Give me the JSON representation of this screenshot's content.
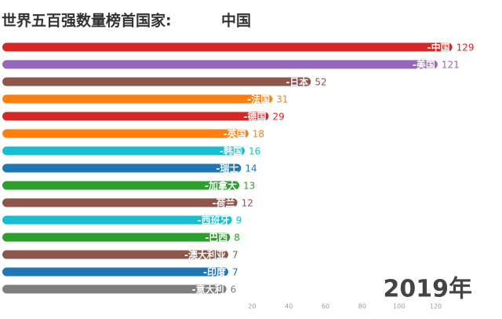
{
  "chart_data": {
    "type": "bar",
    "orientation": "horizontal",
    "title": "世界五百强数量榜首国家:",
    "leader": "中国",
    "annotation": "2019年",
    "categories": [
      "-中国",
      "-美国",
      "-日本",
      "-法国",
      "-德国",
      "-英国",
      "-韩国",
      "-瑞士",
      "-加拿大",
      "-荷兰",
      "-西班牙",
      "-巴西",
      "-澳大利亚",
      "-印度",
      "-意大利"
    ],
    "values": [
      129,
      121,
      52,
      31,
      29,
      18,
      16,
      14,
      13,
      12,
      9,
      8,
      7,
      7,
      6
    ],
    "colors": [
      "#d62728",
      "#9467bd",
      "#8c564b",
      "#ff7f0e",
      "#d62728",
      "#ff7f0e",
      "#17becf",
      "#1f77b4",
      "#2ca02c",
      "#8c564b",
      "#17becf",
      "#2ca02c",
      "#8c564b",
      "#1f77b4",
      "#7f7f7f"
    ],
    "xlim": [
      -116,
      139
    ],
    "xticks": [
      20,
      40,
      60,
      80,
      100,
      120
    ],
    "grid": false
  }
}
